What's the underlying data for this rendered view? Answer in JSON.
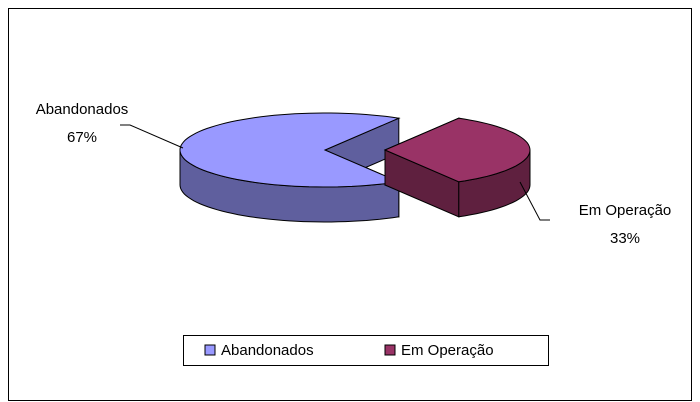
{
  "chart_data": {
    "type": "pie",
    "categories": [
      "Abandonados",
      "Em Operação"
    ],
    "values": [
      67,
      33
    ],
    "value_labels": [
      "67%",
      "33%"
    ],
    "colors": [
      "#9999FF",
      "#993366"
    ],
    "legend": "bottom"
  }
}
